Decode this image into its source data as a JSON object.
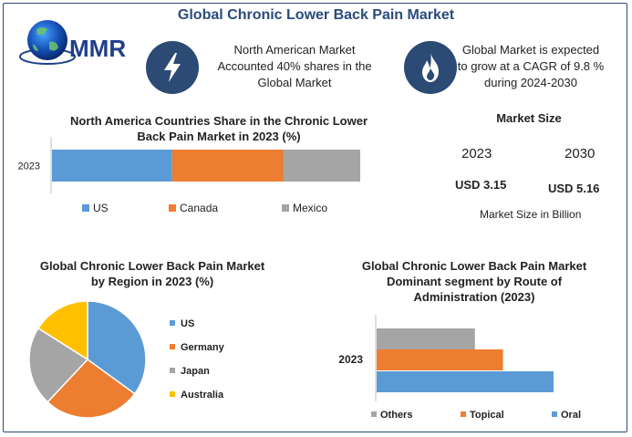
{
  "header": {
    "title": "Global Chronic Lower Back Pain Market"
  },
  "logo": {
    "text": "MMR"
  },
  "stats": [
    {
      "icon": "lightning-icon",
      "text": [
        "North American Market",
        "Accounted 40% shares in the",
        "Global Market"
      ]
    },
    {
      "icon": "flame-icon",
      "text": [
        "Global Market is expected",
        "to grow at a CAGR of 9.8 %",
        "during 2024-2030"
      ]
    }
  ],
  "market_size": {
    "title": "Market Size",
    "year1": "2023",
    "year2": "2030",
    "value1": "USD 3.15",
    "value2": "USD 5.16",
    "note": "Market Size in Billion"
  },
  "colors": {
    "blue": "#5b9bd5",
    "orange": "#ed7d31",
    "gray": "#a5a5a5",
    "yellow": "#ffc000",
    "navy": "#2b4a74"
  },
  "chart_data": [
    {
      "type": "bar",
      "orientation": "horizontal-stacked",
      "title_lines": [
        "North America Countries Share in the Chronic Lower",
        "Back Pain Market in 2023 (%)"
      ],
      "categories": [
        "2023"
      ],
      "series": [
        {
          "name": "US",
          "values": [
            39
          ],
          "color": "#5b9bd5"
        },
        {
          "name": "Canada",
          "values": [
            36
          ],
          "color": "#ed7d31"
        },
        {
          "name": "Mexico",
          "values": [
            25
          ],
          "color": "#a5a5a5"
        }
      ],
      "legend": "bottom"
    },
    {
      "type": "pie",
      "title_lines": [
        "Global Chronic Lower Back Pain Market",
        "by Region in 2023 (%)"
      ],
      "labels": [
        "US",
        "Germany",
        "Japan",
        "Australia"
      ],
      "values": [
        35,
        27,
        22,
        16
      ],
      "colors": [
        "#5b9bd5",
        "#ed7d31",
        "#a5a5a5",
        "#ffc000"
      ],
      "legend": "right"
    },
    {
      "type": "bar",
      "orientation": "horizontal",
      "title_lines": [
        "Global Chronic Lower Back Pain Market",
        "Dominant segment by Route of",
        "Administration (2023)"
      ],
      "categories": [
        "2023"
      ],
      "series": [
        {
          "name": "Others",
          "values": [
            35
          ],
          "color": "#a5a5a5"
        },
        {
          "name": "Topical",
          "values": [
            45
          ],
          "color": "#ed7d31"
        },
        {
          "name": "Oral",
          "values": [
            63
          ],
          "color": "#5b9bd5"
        }
      ],
      "xlim": [
        0,
        70
      ],
      "legend": "bottom"
    }
  ]
}
